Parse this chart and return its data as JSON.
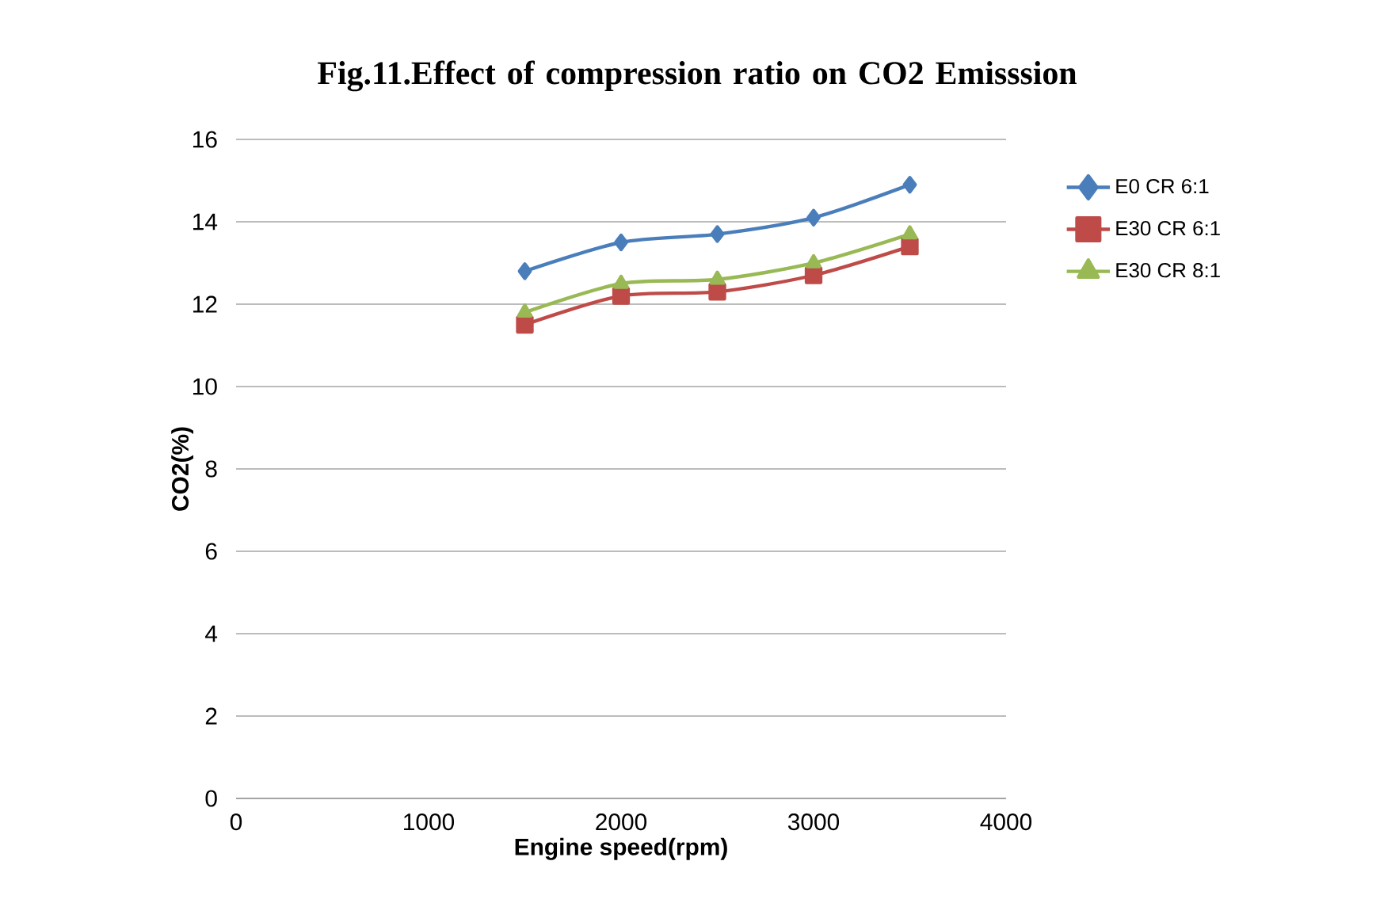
{
  "chart_data": {
    "type": "line",
    "title": "Fig.11.Effect of compression ratio on CO2 Emisssion",
    "xlabel": "Engine speed(rpm)",
    "ylabel": "CO2(%)",
    "x": [
      1500,
      2000,
      2500,
      3000,
      3500
    ],
    "series": [
      {
        "name": "E0 CR 6:1",
        "color": "#4a7ebb",
        "marker": "diamond",
        "values": [
          12.8,
          13.5,
          13.7,
          14.1,
          14.9
        ]
      },
      {
        "name": "E30 CR 6:1",
        "color": "#be4b48",
        "marker": "square",
        "values": [
          11.5,
          12.2,
          12.3,
          12.7,
          13.4
        ]
      },
      {
        "name": "E30 CR 8:1",
        "color": "#98b954",
        "marker": "triangle",
        "values": [
          11.8,
          12.5,
          12.6,
          13.0,
          13.7
        ]
      }
    ],
    "xlim": [
      0,
      4000
    ],
    "xticks": [
      0,
      1000,
      2000,
      3000,
      4000
    ],
    "ylim": [
      0,
      16
    ],
    "yticks": [
      0,
      2,
      4,
      6,
      8,
      10,
      12,
      14,
      16
    ],
    "grid": "y",
    "legend": "right",
    "line_style": "solid"
  }
}
